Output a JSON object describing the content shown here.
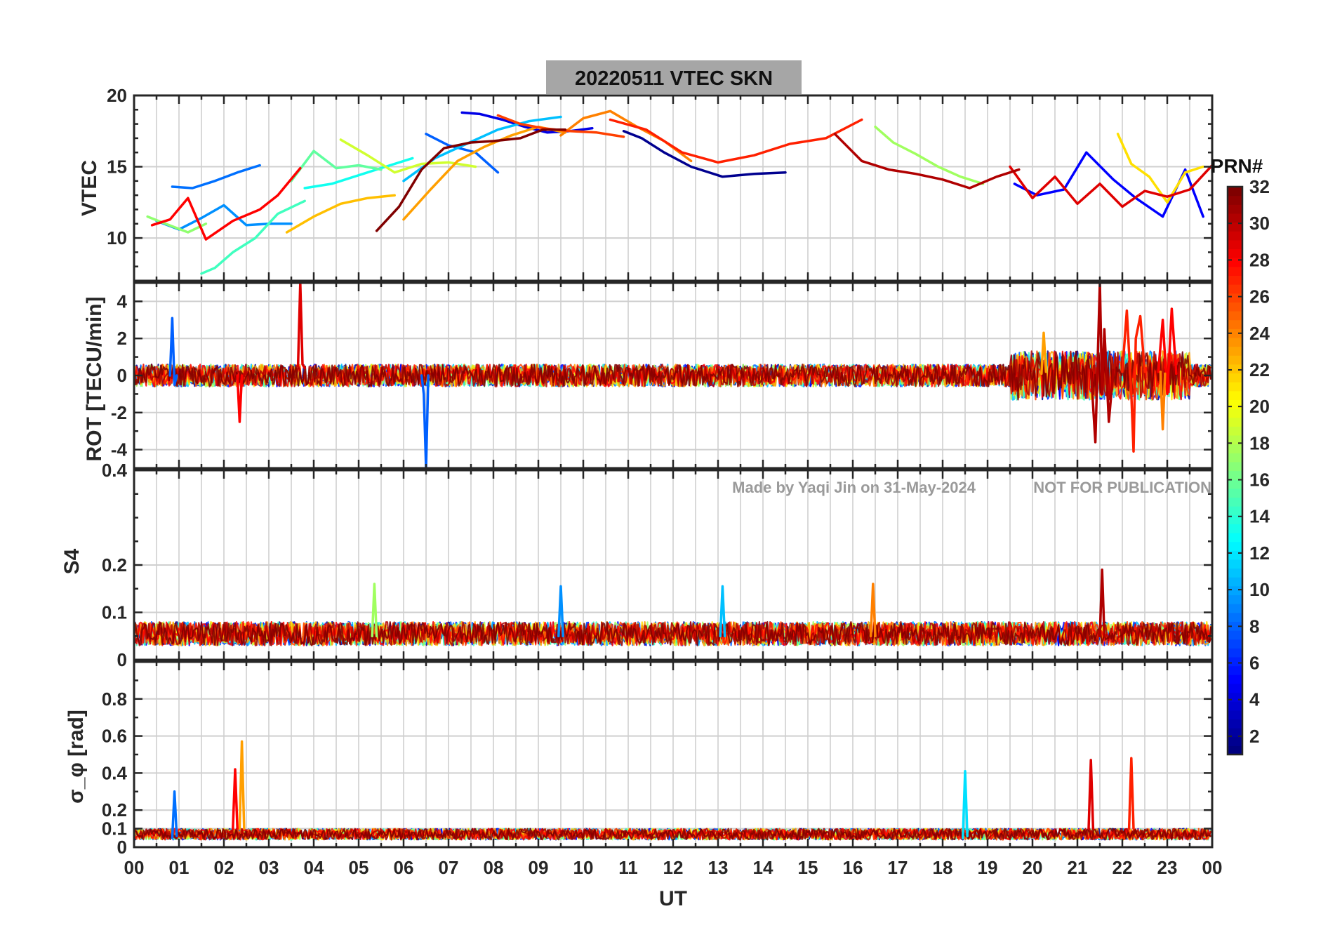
{
  "title": "20220511    VTEC  SKN",
  "watermark": {
    "credit": "Made by Yaqi Jin on 31-May-2024",
    "notice": "NOT FOR PUBLICATION"
  },
  "x_axis": {
    "label": "UT",
    "range": [
      0,
      24
    ],
    "tick_labels": [
      "00",
      "01",
      "02",
      "03",
      "04",
      "05",
      "06",
      "07",
      "08",
      "09",
      "10",
      "11",
      "12",
      "13",
      "14",
      "15",
      "16",
      "17",
      "18",
      "19",
      "20",
      "21",
      "22",
      "23",
      "00"
    ]
  },
  "colorbar": {
    "label": "PRN#",
    "range": [
      1,
      32
    ],
    "tick_labels": [
      "2",
      "4",
      "6",
      "8",
      "10",
      "12",
      "14",
      "16",
      "18",
      "20",
      "22",
      "24",
      "26",
      "28",
      "30",
      "32"
    ],
    "colormap": "jet"
  },
  "chart_data": [
    {
      "type": "line",
      "panel": "vtec",
      "ylabel": "VTEC",
      "ylim": [
        7,
        20
      ],
      "y_tick_labels": [
        "10",
        "15",
        "20"
      ],
      "grid": true,
      "series": [
        {
          "prn": 2,
          "color": "#00008f",
          "x": [
            10.9,
            11.3,
            11.8,
            12.4,
            13.1,
            13.8,
            14.5
          ],
          "y": [
            17.5,
            17.0,
            16.0,
            15.0,
            14.3,
            14.5,
            14.6
          ]
        },
        {
          "prn": 5,
          "color": "#0000e6",
          "x": [
            7.3,
            7.7,
            8.2,
            8.7,
            9.2,
            9.7,
            10.2
          ],
          "y": [
            18.8,
            18.7,
            18.3,
            17.8,
            17.4,
            17.5,
            17.7
          ]
        },
        {
          "prn": 6,
          "color": "#0000ff",
          "x": [
            19.6,
            20.1,
            20.7,
            21.2,
            21.8,
            22.3,
            22.9,
            23.4,
            23.8
          ],
          "y": [
            13.8,
            13.0,
            13.4,
            16.0,
            14.1,
            12.8,
            11.5,
            14.8,
            11.5
          ]
        },
        {
          "prn": 8,
          "color": "#0060ff",
          "x": [
            6.5,
            7.0,
            7.6,
            8.1
          ],
          "y": [
            17.3,
            16.5,
            16.0,
            14.6
          ]
        },
        {
          "prn": 9,
          "color": "#0070ff",
          "x": [
            0.85,
            1.3,
            1.8,
            2.3,
            2.8
          ],
          "y": [
            13.6,
            13.5,
            14.0,
            14.6,
            15.1
          ]
        },
        {
          "prn": 10,
          "color": "#0090ff",
          "x": [
            0.5,
            1.0,
            1.5,
            2.0,
            2.5,
            3.0,
            3.5
          ],
          "y": [
            11.2,
            10.6,
            11.4,
            12.3,
            10.9,
            11.0,
            11.0
          ]
        },
        {
          "prn": 12,
          "color": "#00c0ff",
          "x": [
            6.0,
            6.7,
            7.4,
            8.1,
            8.8,
            9.5
          ],
          "y": [
            14.0,
            15.6,
            16.6,
            17.6,
            18.2,
            18.5
          ]
        },
        {
          "prn": 14,
          "color": "#10ffef",
          "x": [
            3.8,
            4.4,
            5.0,
            5.6,
            6.2
          ],
          "y": [
            13.5,
            13.8,
            14.4,
            15.0,
            15.6
          ]
        },
        {
          "prn": 16,
          "color": "#40ffbf",
          "x": [
            1.5,
            1.8,
            2.2,
            2.7,
            3.2,
            3.8
          ],
          "y": [
            7.5,
            7.9,
            9.0,
            10.0,
            11.7,
            12.6
          ]
        },
        {
          "prn": 17,
          "color": "#60ff9f",
          "x": [
            3.5,
            4.0,
            4.5,
            5.0,
            5.5
          ],
          "y": [
            14.0,
            16.1,
            14.9,
            15.1,
            14.8
          ]
        },
        {
          "prn": 19,
          "color": "#90ff6f",
          "x": [
            0.3,
            0.7,
            1.2,
            1.6
          ],
          "y": [
            11.5,
            11.0,
            10.4,
            11.0
          ]
        },
        {
          "prn": 20,
          "color": "#a0ff5f",
          "x": [
            16.5,
            16.9,
            17.4,
            17.9,
            18.4,
            18.9
          ],
          "y": [
            17.8,
            16.7,
            15.9,
            15.0,
            14.3,
            13.8
          ]
        },
        {
          "prn": 21,
          "color": "#d0ff2f",
          "x": [
            4.6,
            5.2,
            5.8,
            6.4,
            7.0,
            7.6
          ],
          "y": [
            16.9,
            15.8,
            14.6,
            15.2,
            15.3,
            15.0
          ]
        },
        {
          "prn": 22,
          "color": "#ffe000",
          "x": [
            21.9,
            22.2,
            22.6,
            23.0,
            23.4,
            23.8
          ],
          "y": [
            17.3,
            15.2,
            14.3,
            12.5,
            14.6,
            15.0
          ]
        },
        {
          "prn": 23,
          "color": "#ffbf00",
          "x": [
            3.4,
            4.0,
            4.6,
            5.2,
            5.8
          ],
          "y": [
            10.4,
            11.5,
            12.4,
            12.8,
            13.0
          ]
        },
        {
          "prn": 24,
          "color": "#ff9f00",
          "x": [
            6.0,
            6.6,
            7.2,
            7.8,
            8.4,
            9.0,
            9.6
          ],
          "y": [
            11.3,
            13.4,
            15.4,
            16.4,
            17.2,
            17.8,
            17.4
          ]
        },
        {
          "prn": 25,
          "color": "#ff8000",
          "x": [
            9.5,
            10.0,
            10.6,
            11.2,
            11.8,
            12.4
          ],
          "y": [
            17.2,
            18.4,
            18.9,
            17.8,
            16.8,
            15.4
          ]
        },
        {
          "prn": 27,
          "color": "#ff4000",
          "x": [
            8.1,
            8.6,
            9.1,
            9.7,
            10.3,
            10.9
          ],
          "y": [
            18.6,
            18.0,
            17.7,
            17.5,
            17.4,
            17.1
          ]
        },
        {
          "prn": 28,
          "color": "#ff2000",
          "x": [
            10.6,
            11.4,
            12.2,
            13.0,
            13.8,
            14.6,
            15.4,
            16.2
          ],
          "y": [
            18.3,
            17.6,
            16.0,
            15.3,
            15.8,
            16.6,
            17.0,
            18.3
          ]
        },
        {
          "prn": 29,
          "color": "#ff0000",
          "x": [
            0.4,
            0.8,
            1.2,
            1.6,
            2.2,
            2.8,
            3.2,
            3.7
          ],
          "y": [
            10.9,
            11.3,
            12.8,
            9.9,
            11.2,
            12.0,
            13.0,
            14.9
          ]
        },
        {
          "prn": 30,
          "color": "#df0000",
          "x": [
            19.5,
            20.0,
            20.5,
            21.0,
            21.5,
            22.0,
            22.5,
            23.0,
            23.5,
            24.0
          ],
          "y": [
            15.0,
            12.8,
            14.3,
            12.4,
            13.8,
            12.2,
            13.3,
            12.9,
            13.4,
            15.1
          ]
        },
        {
          "prn": 31,
          "color": "#b00000",
          "x": [
            15.6,
            16.2,
            16.8,
            17.4,
            18.0,
            18.6,
            19.2,
            19.7
          ],
          "y": [
            17.3,
            15.4,
            14.8,
            14.5,
            14.1,
            13.5,
            14.3,
            14.8
          ]
        },
        {
          "prn": 32,
          "color": "#800000",
          "x": [
            5.4,
            5.9,
            6.4,
            6.9,
            7.5,
            8.0,
            8.6,
            9.1,
            9.6
          ],
          "y": [
            10.5,
            12.2,
            14.8,
            16.3,
            16.7,
            16.8,
            17.0,
            17.6,
            17.6
          ]
        }
      ]
    },
    {
      "type": "line",
      "panel": "rot",
      "ylabel": "ROT [TECU/min]",
      "ylim": [
        -5,
        5
      ],
      "y_tick_labels": [
        "-4",
        "-2",
        "0",
        "2",
        "4"
      ],
      "grid": true,
      "series": [
        {
          "prn": 8,
          "color": "#0060ff",
          "x": [
            6.4,
            6.45,
            6.5,
            6.55
          ],
          "y": [
            0,
            -1.0,
            -5.0,
            0
          ]
        },
        {
          "prn": 8,
          "color": "#0060ff",
          "x": [
            0.8,
            0.85,
            0.9,
            0.95
          ],
          "y": [
            0,
            3.1,
            -0.5,
            0
          ]
        },
        {
          "prn": 30,
          "color": "#df0000",
          "x": [
            3.65,
            3.7,
            3.75,
            3.8
          ],
          "y": [
            0.5,
            5.0,
            0.6,
            0.4
          ]
        },
        {
          "prn": 31,
          "color": "#b00000",
          "x": [
            21.3,
            21.4,
            21.5,
            21.55,
            21.6,
            21.7,
            21.8
          ],
          "y": [
            0.3,
            -3.6,
            5.0,
            -1.0,
            2.5,
            -2.5,
            0.3
          ]
        },
        {
          "prn": 28,
          "color": "#ff2000",
          "x": [
            22.0,
            22.1,
            22.2,
            22.25,
            22.3,
            22.4,
            22.5
          ],
          "y": [
            0.2,
            3.5,
            -1.0,
            -4.1,
            2.0,
            3.2,
            0.2
          ]
        },
        {
          "prn": 29,
          "color": "#ff0000",
          "x": [
            22.8,
            22.9,
            23.0,
            23.1,
            23.2
          ],
          "y": [
            0.2,
            3.0,
            -1.0,
            3.6,
            0.1
          ]
        },
        {
          "prn": 24,
          "color": "#ff9f00",
          "x": [
            20.2,
            20.25,
            20.3
          ],
          "y": [
            0.1,
            2.3,
            0.2
          ]
        },
        {
          "prn": 25,
          "color": "#ff8000",
          "x": [
            22.85,
            22.9,
            22.95
          ],
          "y": [
            0.2,
            -2.9,
            0.1
          ]
        },
        {
          "prn": 29,
          "color": "#ff0000",
          "x": [
            2.3,
            2.35,
            2.4
          ],
          "y": [
            0,
            -2.5,
            0
          ]
        }
      ]
    },
    {
      "type": "line",
      "panel": "s4",
      "ylabel": "S4",
      "ylim": [
        0,
        0.4
      ],
      "y_tick_labels": [
        "0",
        "0.1",
        "0.2",
        "0.4"
      ],
      "grid": true,
      "series": [
        {
          "prn": 31,
          "color": "#b00000",
          "x": [
            21.5,
            21.55,
            21.6
          ],
          "y": [
            0.05,
            0.19,
            0.05
          ]
        },
        {
          "prn": 25,
          "color": "#ff8000",
          "x": [
            16.4,
            16.45,
            16.5
          ],
          "y": [
            0.05,
            0.16,
            0.05
          ]
        },
        {
          "prn": 20,
          "color": "#a0ff5f",
          "x": [
            5.3,
            5.35,
            5.4
          ],
          "y": [
            0.05,
            0.16,
            0.05
          ]
        },
        {
          "prn": 10,
          "color": "#0090ff",
          "x": [
            9.45,
            9.5,
            9.55
          ],
          "y": [
            0.05,
            0.155,
            0.05
          ]
        },
        {
          "prn": 12,
          "color": "#00c0ff",
          "x": [
            13.05,
            13.1,
            13.15
          ],
          "y": [
            0.05,
            0.155,
            0.05
          ]
        }
      ]
    },
    {
      "type": "line",
      "panel": "sigma_phi",
      "ylabel": "σ_φ [rad]",
      "ylim": [
        0,
        1.0
      ],
      "y_tick_labels": [
        "0",
        "0.1",
        "0.2",
        "0.4",
        "0.6",
        "0.8"
      ],
      "grid": true,
      "series": [
        {
          "prn": 24,
          "color": "#ff9f00",
          "x": [
            2.35,
            2.4,
            2.45
          ],
          "y": [
            0.1,
            0.57,
            0.1
          ]
        },
        {
          "prn": 29,
          "color": "#ff0000",
          "x": [
            2.2,
            2.25,
            2.3
          ],
          "y": [
            0.1,
            0.42,
            0.1
          ]
        },
        {
          "prn": 13,
          "color": "#00e0ff",
          "x": [
            18.45,
            18.5,
            18.55
          ],
          "y": [
            0.05,
            0.41,
            0.06
          ]
        },
        {
          "prn": 30,
          "color": "#df0000",
          "x": [
            21.25,
            21.3,
            21.35
          ],
          "y": [
            0.1,
            0.47,
            0.1
          ]
        },
        {
          "prn": 28,
          "color": "#ff2000",
          "x": [
            22.15,
            22.2,
            22.25
          ],
          "y": [
            0.1,
            0.48,
            0.1
          ]
        },
        {
          "prn": 9,
          "color": "#0070ff",
          "x": [
            0.85,
            0.9,
            0.95
          ],
          "y": [
            0.05,
            0.3,
            0.06
          ]
        }
      ]
    }
  ]
}
